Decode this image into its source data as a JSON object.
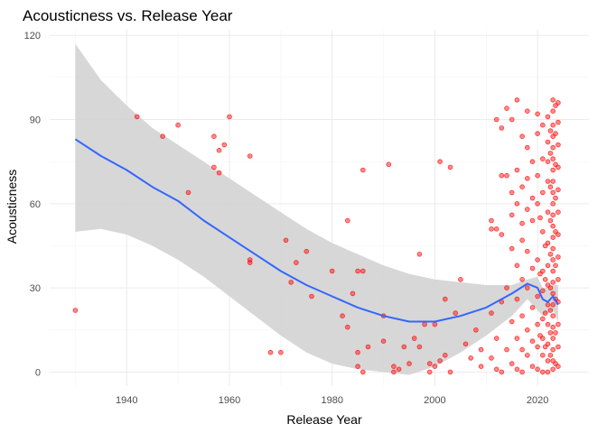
{
  "chart_data": {
    "type": "scatter",
    "title": "Acousticness vs. Release Year",
    "xlabel": "Release Year",
    "ylabel": "Acousticness",
    "xlim": [
      1925,
      2030
    ],
    "ylim": [
      -5,
      122
    ],
    "x_ticks": [
      1940,
      1960,
      1980,
      2000,
      2020
    ],
    "y_ticks": [
      0,
      30,
      60,
      90,
      120
    ],
    "grid": true,
    "point_color": "#ff0000",
    "smooth_color": "#3366ff",
    "band_color": "#d3d3d3",
    "smooth": {
      "x": [
        1930,
        1935,
        1940,
        1945,
        1950,
        1955,
        1960,
        1965,
        1970,
        1975,
        1980,
        1985,
        1990,
        1995,
        2000,
        2005,
        2010,
        2015,
        2018,
        2020,
        2021,
        2022,
        2023,
        2024
      ],
      "y": [
        83,
        77,
        72,
        66,
        61,
        54,
        48,
        42,
        36,
        31,
        27,
        23,
        20,
        18,
        18,
        20,
        23,
        28,
        31.5,
        30,
        26,
        25,
        27,
        24
      ],
      "lower": [
        50,
        51,
        49,
        45,
        40,
        34,
        27,
        20,
        13,
        7,
        3,
        1,
        0,
        -1,
        2,
        7,
        13,
        20,
        26,
        22,
        20,
        21,
        22,
        18
      ],
      "upper": [
        117,
        104,
        95,
        87,
        81,
        75,
        69,
        63,
        57,
        51,
        46,
        42,
        38,
        35,
        33,
        32,
        31,
        31,
        33,
        34,
        30,
        30,
        31,
        31
      ]
    },
    "points": [
      [
        1930,
        22
      ],
      [
        1942,
        91
      ],
      [
        1947,
        84
      ],
      [
        1950,
        88
      ],
      [
        1952,
        64
      ],
      [
        1957,
        84
      ],
      [
        1957,
        73
      ],
      [
        1958,
        79
      ],
      [
        1958,
        71
      ],
      [
        1959,
        81
      ],
      [
        1960,
        91
      ],
      [
        1964,
        77
      ],
      [
        1964,
        40
      ],
      [
        1964,
        39
      ],
      [
        1968,
        7
      ],
      [
        1970,
        7
      ],
      [
        1971,
        47
      ],
      [
        1972,
        32
      ],
      [
        1973,
        39
      ],
      [
        1975,
        43
      ],
      [
        1976,
        27
      ],
      [
        1980,
        36
      ],
      [
        1982,
        20
      ],
      [
        1983,
        16
      ],
      [
        1983,
        54
      ],
      [
        1984,
        28
      ],
      [
        1985,
        2
      ],
      [
        1985,
        36
      ],
      [
        1986,
        36
      ],
      [
        1986,
        72
      ],
      [
        1986,
        0
      ],
      [
        1985,
        7
      ],
      [
        1987,
        9
      ],
      [
        1990,
        20
      ],
      [
        1990,
        11
      ],
      [
        1991,
        74
      ],
      [
        1992,
        2
      ],
      [
        1992,
        0
      ],
      [
        1993,
        1
      ],
      [
        1994,
        9
      ],
      [
        1995,
        3
      ],
      [
        1996,
        12
      ],
      [
        1997,
        42
      ],
      [
        1997,
        9
      ],
      [
        1998,
        17
      ],
      [
        1999,
        3
      ],
      [
        1999,
        0
      ],
      [
        2000,
        2
      ],
      [
        2000,
        17
      ],
      [
        2001,
        4
      ],
      [
        2001,
        75
      ],
      [
        2002,
        6
      ],
      [
        2002,
        26
      ],
      [
        2003,
        73
      ],
      [
        2003,
        0
      ],
      [
        2004,
        21
      ],
      [
        2005,
        33
      ],
      [
        2006,
        10
      ],
      [
        2007,
        5
      ],
      [
        2008,
        15
      ],
      [
        2009,
        2
      ],
      [
        2009,
        8
      ],
      [
        2011,
        54
      ],
      [
        2011,
        51
      ],
      [
        2011,
        21
      ],
      [
        2011,
        5
      ],
      [
        2012,
        90
      ],
      [
        2012,
        51
      ],
      [
        2012,
        12
      ],
      [
        2012,
        1
      ],
      [
        2013,
        87
      ],
      [
        2013,
        70
      ],
      [
        2013,
        49
      ],
      [
        2013,
        25
      ],
      [
        2013,
        0
      ],
      [
        2014,
        94
      ],
      [
        2014,
        70
      ],
      [
        2014,
        30
      ],
      [
        2014,
        8
      ],
      [
        2015,
        90
      ],
      [
        2015,
        64
      ],
      [
        2015,
        56
      ],
      [
        2015,
        44
      ],
      [
        2015,
        18
      ],
      [
        2015,
        3
      ],
      [
        2016,
        97
      ],
      [
        2016,
        72
      ],
      [
        2016,
        60
      ],
      [
        2016,
        38
      ],
      [
        2016,
        26
      ],
      [
        2016,
        12
      ],
      [
        2016,
        1
      ],
      [
        2017,
        84
      ],
      [
        2017,
        66
      ],
      [
        2017,
        53
      ],
      [
        2017,
        47
      ],
      [
        2017,
        33
      ],
      [
        2017,
        20
      ],
      [
        2017,
        8
      ],
      [
        2017,
        0
      ],
      [
        2018,
        93
      ],
      [
        2018,
        80
      ],
      [
        2018,
        69
      ],
      [
        2018,
        58
      ],
      [
        2018,
        43
      ],
      [
        2018,
        30
      ],
      [
        2018,
        15
      ],
      [
        2018,
        6
      ],
      [
        2019,
        75
      ],
      [
        2019,
        62
      ],
      [
        2019,
        54
      ],
      [
        2019,
        37
      ],
      [
        2019,
        23
      ],
      [
        2019,
        11
      ],
      [
        2019,
        2
      ],
      [
        2020,
        92
      ],
      [
        2020,
        85
      ],
      [
        2020,
        70
      ],
      [
        2020,
        60
      ],
      [
        2020,
        40
      ],
      [
        2020,
        27
      ],
      [
        2020,
        17
      ],
      [
        2020,
        9
      ],
      [
        2020,
        1
      ],
      [
        2021,
        88
      ],
      [
        2021,
        76
      ],
      [
        2021,
        64
      ],
      [
        2021,
        50
      ],
      [
        2021,
        36
      ],
      [
        2021,
        29
      ],
      [
        2021,
        19
      ],
      [
        2021,
        12
      ],
      [
        2021,
        6
      ],
      [
        2021,
        0
      ],
      [
        2022,
        91
      ],
      [
        2022,
        82
      ],
      [
        2022,
        75
      ],
      [
        2022,
        68
      ],
      [
        2022,
        57
      ],
      [
        2022,
        46
      ],
      [
        2022,
        38
      ],
      [
        2022,
        31
      ],
      [
        2022,
        24
      ],
      [
        2022,
        17
      ],
      [
        2022,
        10
      ],
      [
        2022,
        4
      ],
      [
        2022,
        0
      ],
      [
        2023,
        97
      ],
      [
        2023,
        93
      ],
      [
        2023,
        88
      ],
      [
        2023,
        84
      ],
      [
        2023,
        80
      ],
      [
        2023,
        76
      ],
      [
        2023,
        72
      ],
      [
        2023,
        68
      ],
      [
        2023,
        64
      ],
      [
        2023,
        60
      ],
      [
        2023,
        56
      ],
      [
        2023,
        52
      ],
      [
        2023,
        48
      ],
      [
        2023,
        44
      ],
      [
        2023,
        40
      ],
      [
        2023,
        36
      ],
      [
        2023,
        32
      ],
      [
        2023,
        28
      ],
      [
        2023,
        24
      ],
      [
        2023,
        20
      ],
      [
        2023,
        16
      ],
      [
        2023,
        12
      ],
      [
        2023,
        8
      ],
      [
        2023,
        4
      ],
      [
        2023,
        1
      ],
      [
        2022.5,
        86
      ],
      [
        2022.5,
        78
      ],
      [
        2022.5,
        66
      ],
      [
        2022.5,
        54
      ],
      [
        2022.5,
        42
      ],
      [
        2022.5,
        30
      ],
      [
        2022.5,
        22
      ],
      [
        2022.5,
        14
      ],
      [
        2022.5,
        6
      ],
      [
        2023.5,
        95
      ],
      [
        2023.5,
        85
      ],
      [
        2023.5,
        74
      ],
      [
        2023.5,
        62
      ],
      [
        2023.5,
        50
      ],
      [
        2023.5,
        38
      ],
      [
        2023.5,
        26
      ],
      [
        2023.5,
        14
      ],
      [
        2023.5,
        3
      ],
      [
        2024,
        96
      ],
      [
        2024,
        89
      ],
      [
        2024,
        81
      ],
      [
        2024,
        73
      ],
      [
        2024,
        65
      ],
      [
        2024,
        57
      ],
      [
        2024,
        49
      ],
      [
        2024,
        41
      ],
      [
        2024,
        33
      ],
      [
        2024,
        25
      ],
      [
        2024,
        17
      ],
      [
        2024,
        9
      ],
      [
        2024,
        2
      ],
      [
        2021.5,
        45
      ],
      [
        2021.5,
        33
      ],
      [
        2021.5,
        21
      ],
      [
        2021.5,
        9
      ],
      [
        2020.5,
        55
      ],
      [
        2020.5,
        35
      ],
      [
        2020.5,
        13
      ]
    ]
  }
}
